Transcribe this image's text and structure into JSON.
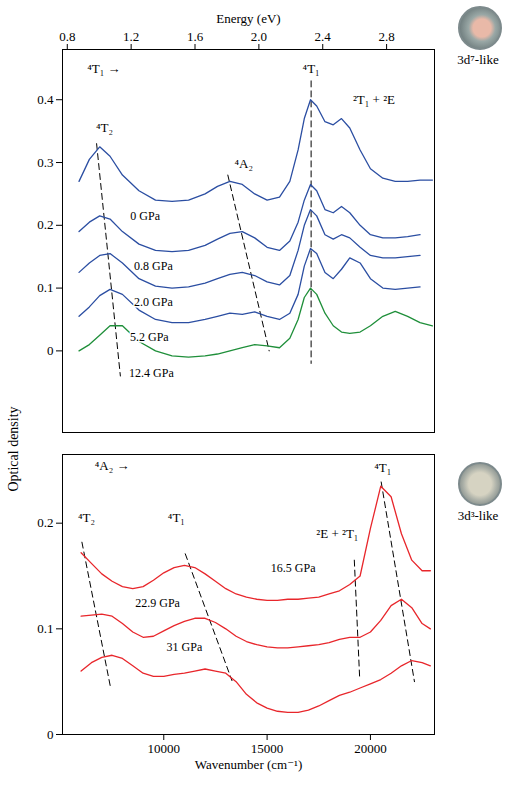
{
  "chart_data": [
    {
      "type": "line",
      "ylabel": "Optical density",
      "x2label": "Energy (eV)",
      "x2lim": [
        0.77,
        3.1
      ],
      "x2ticks": [
        0.8,
        1.2,
        1.6,
        {
          "value": 2,
          "label": "2.0"
        },
        2.4,
        2.8
      ],
      "xlim": [
        5100,
        23100
      ],
      "ylim": [
        -0.13,
        0.48
      ],
      "yticks": [
        0,
        0.1,
        0.2,
        0.3,
        0.4
      ],
      "sample_label": "3d⁷-like",
      "x": [
        5900,
        6400,
        6900,
        7400,
        8000,
        8800,
        9600,
        10400,
        11200,
        12000,
        12600,
        13200,
        13800,
        14400,
        15000,
        15600,
        16100,
        16500,
        16800,
        17100,
        17400,
        17800,
        18200,
        18600,
        19000,
        19500,
        20000,
        20600,
        21200,
        21800,
        22400,
        23000
      ],
      "series": [
        {
          "name": "0 GPa",
          "color": "#2b4ea2",
          "label_x": 9100,
          "label_y": 0.215,
          "values": [
            0.27,
            0.305,
            0.325,
            0.31,
            0.28,
            0.255,
            0.24,
            0.238,
            0.24,
            0.25,
            0.262,
            0.27,
            0.265,
            0.25,
            0.24,
            0.245,
            0.27,
            0.32,
            0.37,
            0.4,
            0.39,
            0.365,
            0.36,
            0.37,
            0.355,
            0.32,
            0.29,
            0.275,
            0.27,
            0.27,
            0.272,
            0.272
          ]
        },
        {
          "name": "0.8 GPa",
          "color": "#2b4ea2",
          "label_x": 9500,
          "label_y": 0.135,
          "values": [
            0.19,
            0.205,
            0.215,
            0.21,
            0.19,
            0.17,
            0.16,
            0.158,
            0.16,
            0.168,
            0.178,
            0.187,
            0.19,
            0.18,
            0.165,
            0.16,
            0.175,
            0.205,
            0.24,
            0.265,
            0.255,
            0.225,
            0.22,
            0.23,
            0.22,
            0.2,
            0.185,
            0.18,
            0.18,
            0.182,
            0.185,
            null
          ]
        },
        {
          "name": "2.0 GPa",
          "color": "#2b4ea2",
          "label_x": 9500,
          "label_y": 0.078,
          "values": [
            0.125,
            0.14,
            0.152,
            0.155,
            0.14,
            0.115,
            0.103,
            0.1,
            0.102,
            0.108,
            0.115,
            0.122,
            0.125,
            0.12,
            0.11,
            0.105,
            0.12,
            0.16,
            0.2,
            0.225,
            0.215,
            0.185,
            0.178,
            0.185,
            0.18,
            0.165,
            0.152,
            0.148,
            0.148,
            0.15,
            0.152,
            null
          ]
        },
        {
          "name": "5.2 GPa",
          "color": "#2b4ea2",
          "label_x": 9300,
          "label_y": 0.022,
          "values": [
            0.055,
            0.07,
            0.088,
            0.098,
            0.09,
            0.065,
            0.05,
            0.045,
            0.045,
            0.05,
            0.055,
            0.06,
            0.058,
            0.062,
            0.055,
            0.05,
            0.06,
            0.09,
            0.135,
            0.163,
            0.155,
            0.125,
            0.115,
            0.13,
            0.148,
            0.14,
            0.115,
            0.1,
            0.098,
            0.1,
            0.102,
            null
          ]
        },
        {
          "name": "12.4 GPa",
          "color": "#1f8f3a",
          "label_x": 9400,
          "label_y": -0.035,
          "values": [
            0.0,
            0.01,
            0.025,
            0.04,
            0.04,
            0.015,
            0.0,
            -0.008,
            -0.01,
            -0.008,
            -0.005,
            0.0,
            0.005,
            0.01,
            0.008,
            0.005,
            0.02,
            0.05,
            0.085,
            0.1,
            0.09,
            0.06,
            0.04,
            0.03,
            0.028,
            0.03,
            0.04,
            0.055,
            0.063,
            0.055,
            0.045,
            0.04
          ]
        }
      ],
      "annotations": [
        {
          "text": "⁴T₁ →",
          "x": 7100,
          "y": 0.45
        },
        {
          "text": "⁴T₂",
          "x": 7130,
          "y": 0.355
        },
        {
          "text": "⁴A₂",
          "x": 13870,
          "y": 0.298
        },
        {
          "text": "⁴T₁",
          "x": 17130,
          "y": 0.45
        },
        {
          "text": "²T₁ + ²E",
          "x": 20170,
          "y": 0.4
        }
      ],
      "guides": [
        {
          "x": [
            6750,
            7900
          ],
          "y": [
            0.33,
            -0.04
          ],
          "line_style": "dashed"
        },
        {
          "x": [
            13100,
            15100
          ],
          "y": [
            0.28,
            0.0
          ],
          "line_style": "dashed"
        },
        {
          "x": [
            17130,
            17130
          ],
          "y": [
            0.43,
            -0.02
          ],
          "line_style": "dashed"
        }
      ]
    },
    {
      "type": "line",
      "xlabel": "Wavenumber (cm⁻¹)",
      "xlim": [
        5100,
        23100
      ],
      "xticks": [
        10000,
        15000,
        20000
      ],
      "ylim": [
        0,
        0.265
      ],
      "yticks": [
        0,
        0.1,
        0.2
      ],
      "sample_label": "3d³-like",
      "x": [
        6000,
        6500,
        7000,
        7500,
        8000,
        8500,
        9000,
        9500,
        10000,
        10500,
        11000,
        11500,
        12000,
        12500,
        13000,
        13500,
        14000,
        14500,
        15000,
        15500,
        16000,
        16500,
        17000,
        17500,
        18000,
        18500,
        19000,
        19500,
        20000,
        20500,
        21000,
        21500,
        22000,
        22500,
        22900
      ],
      "series": [
        {
          "name": "16.5 GPa",
          "color": "#e8262b",
          "label_x": 16260,
          "label_y": 0.157,
          "values": [
            0.172,
            0.162,
            0.152,
            0.145,
            0.14,
            0.138,
            0.14,
            0.146,
            0.153,
            0.158,
            0.16,
            0.158,
            0.152,
            0.145,
            0.138,
            0.133,
            0.13,
            0.128,
            0.127,
            0.127,
            0.128,
            0.128,
            0.129,
            0.13,
            0.133,
            0.136,
            0.142,
            0.15,
            0.195,
            0.235,
            0.225,
            0.19,
            0.165,
            0.155,
            0.155
          ]
        },
        {
          "name": "22.9 GPa",
          "color": "#e8262b",
          "label_x": 9700,
          "label_y": 0.124,
          "values": [
            0.112,
            0.113,
            0.114,
            0.112,
            0.105,
            0.097,
            0.092,
            0.093,
            0.098,
            0.103,
            0.107,
            0.11,
            0.11,
            0.106,
            0.1,
            0.093,
            0.088,
            0.085,
            0.083,
            0.082,
            0.082,
            0.083,
            0.084,
            0.085,
            0.087,
            0.09,
            0.092,
            0.092,
            0.097,
            0.108,
            0.122,
            0.128,
            0.12,
            0.105,
            0.1
          ]
        },
        {
          "name": "31 GPa",
          "color": "#e8262b",
          "label_x": 11000,
          "label_y": 0.083,
          "values": [
            0.06,
            0.068,
            0.073,
            0.075,
            0.072,
            0.065,
            0.058,
            0.055,
            0.055,
            0.057,
            0.058,
            0.06,
            0.062,
            0.06,
            0.058,
            0.05,
            0.038,
            0.03,
            0.025,
            0.022,
            0.021,
            0.021,
            0.023,
            0.027,
            0.032,
            0.037,
            0.04,
            0.044,
            0.048,
            0.052,
            0.058,
            0.065,
            0.07,
            0.068,
            0.065
          ]
        }
      ],
      "annotations": [
        {
          "text": "⁴A₂ →",
          "x": 7500,
          "y": 0.2545
        },
        {
          "text": "⁴T₂",
          "x": 6260,
          "y": 0.205
        },
        {
          "text": "⁴T₁",
          "x": 10610,
          "y": 0.205
        },
        {
          "text": "²E + ²T₁",
          "x": 18400,
          "y": 0.19
        },
        {
          "text": "⁴T₁",
          "x": 20600,
          "y": 0.252
        }
      ],
      "guides": [
        {
          "x": [
            6040,
            7430
          ],
          "y": [
            0.182,
            0.044
          ],
          "line_style": "dashed"
        },
        {
          "x": [
            11040,
            13300
          ],
          "y": [
            0.171,
            0.051
          ],
          "line_style": "dashed"
        },
        {
          "x": [
            19220,
            19480
          ],
          "y": [
            0.165,
            0.053
          ],
          "line_style": "dashed"
        },
        {
          "x": [
            20520,
            22130
          ],
          "y": [
            0.239,
            0.05
          ],
          "line_style": "dashed"
        }
      ]
    }
  ]
}
